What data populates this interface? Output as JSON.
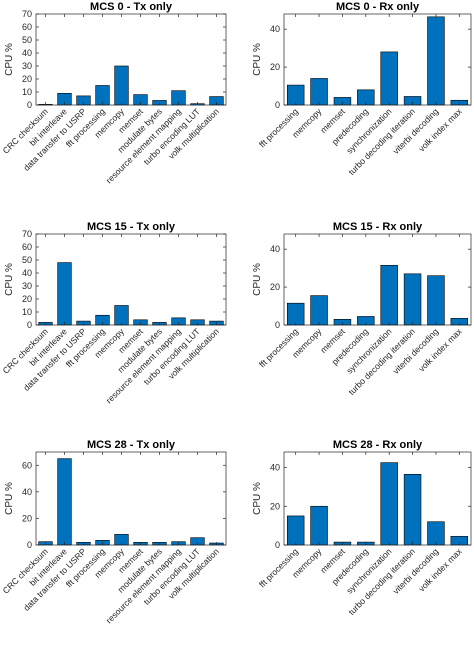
{
  "colors": {
    "bar": "#0072BD",
    "axis": "#262626",
    "title": "#000000"
  },
  "chart_data": [
    {
      "type": "bar",
      "title": "MCS 0 - Tx only",
      "ylabel": "CPU %",
      "ylim": [
        0,
        70
      ],
      "yticks": [
        0,
        10,
        20,
        30,
        40,
        50,
        60,
        70
      ],
      "categories": [
        "CRC checksum",
        "bit interleave",
        "data transfer to USRP",
        "fft processing",
        "memcopy",
        "memset",
        "modulate bytes",
        "resource element mapping",
        "turbo encoding LUT",
        "volk multiplication"
      ],
      "values": [
        0.5,
        9,
        7,
        15,
        30,
        8,
        3.5,
        11,
        1,
        6.5
      ]
    },
    {
      "type": "bar",
      "title": "MCS 0 - Rx only",
      "ylabel": "CPU %",
      "ylim": [
        0,
        48
      ],
      "yticks": [
        0,
        20,
        40
      ],
      "categories": [
        "fft processing",
        "memcopy",
        "memset",
        "predecoding",
        "synchronization",
        "turbo decoding iteration",
        "viterbi decoding",
        "volk index max"
      ],
      "values": [
        10.5,
        14,
        4,
        8,
        28,
        4.5,
        46.5,
        2.5
      ]
    },
    {
      "type": "bar",
      "title": "MCS 15 - Tx only",
      "ylabel": "CPU %",
      "ylim": [
        0,
        70
      ],
      "yticks": [
        0,
        10,
        20,
        30,
        40,
        50,
        60,
        70
      ],
      "categories": [
        "CRC checksum",
        "bit interleave",
        "data transfer to USRP",
        "fft processing",
        "memcopy",
        "memset",
        "modulate bytes",
        "resource element mapping",
        "turbo encoding LUT",
        "volk multiplication"
      ],
      "values": [
        2,
        48,
        3,
        7.5,
        15,
        4,
        2,
        5.5,
        4,
        3
      ]
    },
    {
      "type": "bar",
      "title": "MCS 15 - Rx only",
      "ylabel": "CPU %",
      "ylim": [
        0,
        48
      ],
      "yticks": [
        0,
        20,
        40
      ],
      "categories": [
        "fft processing",
        "memcopy",
        "memset",
        "predecoding",
        "synchronization",
        "turbo decoding iteration",
        "viterbi decoding",
        "volk index max"
      ],
      "values": [
        11.5,
        15.5,
        3,
        4.5,
        31.5,
        27,
        26,
        3.5
      ]
    },
    {
      "type": "bar",
      "title": "MCS 28 - Tx only",
      "ylabel": "CPU %",
      "ylim": [
        0,
        70
      ],
      "yticks": [
        0,
        20,
        40,
        60
      ],
      "categories": [
        "CRC checksum",
        "bit interleave",
        "data transfer to USRP",
        "fft processing",
        "memcopy",
        "memset",
        "modulate bytes",
        "resource element mapping",
        "turbo encoding LUT",
        "volk multiplication"
      ],
      "values": [
        2.5,
        65,
        2,
        3.5,
        8,
        2,
        2,
        2.5,
        5.5,
        1.5
      ]
    },
    {
      "type": "bar",
      "title": "MCS 28 - Rx only",
      "ylabel": "CPU %",
      "ylim": [
        0,
        48
      ],
      "yticks": [
        0,
        20,
        40
      ],
      "categories": [
        "fft processing",
        "memcopy",
        "memset",
        "predecoding",
        "synchronization",
        "turbo decoding iteration",
        "viterbi decoding",
        "volk index max"
      ],
      "values": [
        15,
        20,
        1.5,
        1.5,
        42.5,
        36.5,
        12,
        4.5
      ]
    }
  ]
}
